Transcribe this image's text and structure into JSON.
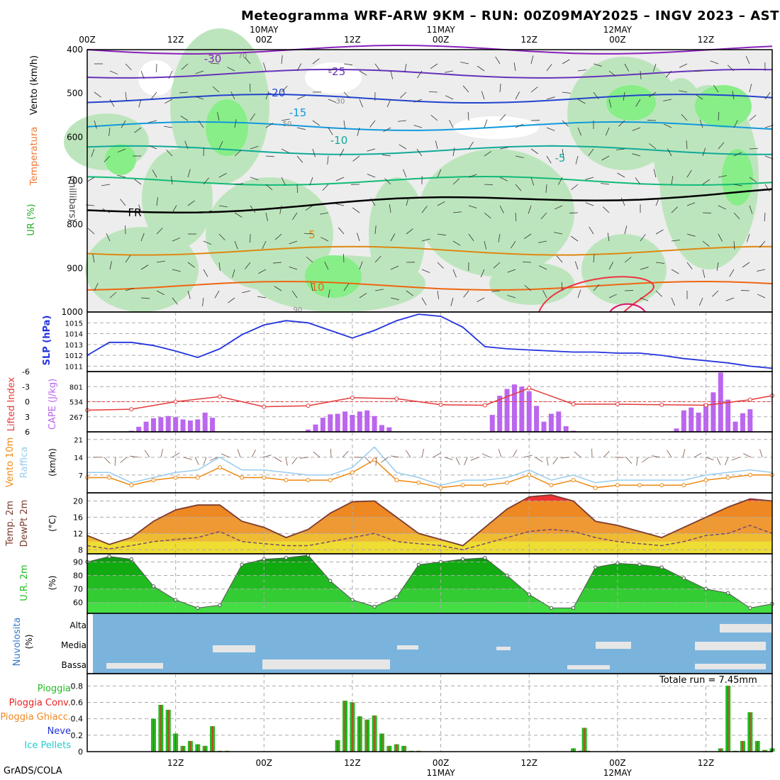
{
  "title": "Meteogramma WRF-ARW 9KM – RUN: 00Z09MAY2025 – INGV 2023 – ASTI",
  "footer": "GrADS/COLA",
  "colors": {
    "slp": "#2233dd",
    "lifted": "#e43a3a",
    "cape": "#bb66ee",
    "wind10": "#ee8811",
    "gust": "#99ccee",
    "temp": "#7a3b2e",
    "humidity": "#22bb22",
    "cloudbg": "#7ab4dd",
    "rain": "#22bb22",
    "rainconv": "#ee2222"
  },
  "time_axis": {
    "top_hours": [
      "00Z",
      "12Z",
      "00Z",
      "12Z",
      "00Z",
      "12Z",
      "00Z",
      "12Z"
    ],
    "top_dates": [
      "10MAY",
      "11MAY",
      "12MAY"
    ],
    "bottom_hours": [
      "12Z",
      "00Z",
      "12Z",
      "00Z",
      "12Z",
      "00Z",
      "12Z"
    ],
    "bottom_dates": [
      "11MAY",
      "12MAY"
    ]
  },
  "panels": {
    "upper": {
      "labels": [
        "Vento (km/h)",
        "Temperatura",
        "UR (%)",
        "(millibars)"
      ],
      "y_ticks": [
        "400",
        "500",
        "600",
        "700",
        "800",
        "900",
        "1000"
      ],
      "isotherm_labels": [
        "-30",
        "-25",
        "-20",
        "-15",
        "-10",
        "-5",
        "FR",
        "5",
        "10"
      ],
      "rh_labels": [
        "70",
        "50",
        "30",
        "90"
      ]
    },
    "slp": {
      "label": "SLP (hPa)",
      "y_ticks": [
        "1015",
        "1014",
        "1013",
        "1012",
        "1011"
      ]
    },
    "cape": {
      "label_li": "Lifted Index",
      "label_cape": "CAPE (J/kg)",
      "y_ticks_li": [
        "-6",
        "-3",
        "0",
        "3",
        "6"
      ],
      "y_ticks_cape": [
        "801",
        "534",
        "267"
      ]
    },
    "wind": {
      "label_wind": "Vento 10m",
      "label_gust": "Raffica",
      "unit": "(km/h)",
      "y_ticks": [
        "21",
        "14",
        "7"
      ]
    },
    "temp": {
      "label_temp": "Temp. 2m",
      "label_dew": "DewPt 2m",
      "unit": "(°C)",
      "y_ticks": [
        "20",
        "16",
        "12",
        "8"
      ]
    },
    "rh": {
      "label": "U.R. 2m",
      "unit": "(%)",
      "y_ticks": [
        "90",
        "80",
        "70",
        "60"
      ]
    },
    "cloud": {
      "label": "Nuvolosita",
      "unit": "(%)",
      "levels": [
        "Alta",
        "Media",
        "Bassa"
      ]
    },
    "precip": {
      "legend": [
        "Pioggia",
        "Pioggia Conv.",
        "Pioggia Ghiacc.",
        "Neve",
        "Ice Pellets"
      ],
      "y_ticks": [
        "0.8",
        "0.6",
        "0.4",
        "0.2",
        "0"
      ],
      "total_text": "Totale run = 7.45mm"
    }
  },
  "chart_data": [
    {
      "type": "line",
      "title": "SLP (hPa)",
      "ylim": [
        1010.5,
        1016
      ],
      "x": [
        0,
        3,
        6,
        9,
        12,
        15,
        18,
        21,
        24,
        27,
        30,
        33,
        36,
        39,
        42,
        45,
        48,
        51,
        54,
        57,
        60,
        63,
        66,
        69,
        72,
        75,
        78,
        81,
        84,
        87,
        90,
        93
      ],
      "series": [
        {
          "name": "SLP (hPa)",
          "values": [
            1012.0,
            1013.2,
            1013.2,
            1012.9,
            1012.4,
            1011.8,
            1012.6,
            1013.9,
            1014.8,
            1015.2,
            1015.0,
            1014.3,
            1013.6,
            1014.3,
            1015.2,
            1015.8,
            1015.6,
            1014.6,
            1012.8,
            1012.6,
            1012.5,
            1012.4,
            1012.3,
            1012.3,
            1012.2,
            1012.2,
            1012.0,
            1011.7,
            1011.5,
            1011.3,
            1011.0,
            1010.8
          ]
        }
      ]
    },
    {
      "type": "bar",
      "title": "CAPE (J/kg)",
      "ylim": [
        0,
        1068
      ],
      "x": [
        6,
        7,
        8,
        9,
        10,
        11,
        12,
        13,
        14,
        15,
        16,
        17,
        18,
        30,
        31,
        32,
        33,
        34,
        35,
        36,
        37,
        38,
        39,
        40,
        41,
        42,
        55,
        56,
        57,
        58,
        59,
        60,
        61,
        62,
        63,
        64,
        65,
        66,
        67,
        80,
        81,
        82,
        83,
        84,
        85,
        86,
        87,
        88,
        89,
        90
      ],
      "values": [
        20,
        90,
        180,
        240,
        260,
        280,
        260,
        220,
        200,
        220,
        340,
        250,
        0,
        40,
        130,
        250,
        310,
        320,
        360,
        300,
        360,
        380,
        280,
        120,
        80,
        0,
        300,
        640,
        760,
        840,
        800,
        720,
        460,
        180,
        320,
        360,
        100,
        20,
        0,
        60,
        380,
        430,
        340,
        500,
        700,
        1050,
        570,
        180,
        330,
        400
      ]
    },
    {
      "type": "line",
      "title": "Lifted Index",
      "ylim": [
        -6,
        6
      ],
      "x": [
        0,
        6,
        12,
        18,
        24,
        30,
        36,
        42,
        48,
        54,
        60,
        66,
        72,
        78,
        84,
        90,
        93
      ],
      "series": [
        {
          "name": "Lifted Index",
          "values": [
            1.7,
            1.5,
            0.0,
            -1.0,
            1.0,
            0.8,
            -0.8,
            -0.6,
            0.6,
            0.7,
            -2.7,
            0.5,
            0.5,
            0.6,
            0.7,
            -0.4,
            -1.2
          ]
        }
      ]
    },
    {
      "type": "line",
      "title": "Vento 10m / Raffica (km/h)",
      "ylim": [
        0,
        24
      ],
      "x": [
        0,
        3,
        6,
        9,
        12,
        15,
        18,
        21,
        24,
        27,
        30,
        33,
        36,
        39,
        42,
        45,
        48,
        51,
        54,
        57,
        60,
        63,
        66,
        69,
        72,
        75,
        78,
        81,
        84,
        87,
        90,
        93
      ],
      "series": [
        {
          "name": "Vento 10m",
          "values": [
            6,
            6,
            3,
            5,
            6,
            6,
            10,
            6,
            6,
            5,
            5,
            5,
            8,
            13,
            5,
            4,
            2,
            3,
            3,
            4,
            7,
            3,
            5,
            2,
            3,
            3,
            3,
            3,
            5,
            6,
            7,
            7
          ]
        },
        {
          "name": "Raffica",
          "values": [
            8,
            8,
            4,
            6,
            8,
            9,
            14,
            9,
            9,
            8,
            7,
            7,
            10,
            18,
            8,
            6,
            3,
            5,
            5,
            6,
            9,
            5,
            7,
            4,
            5,
            5,
            5,
            5,
            7,
            8,
            9,
            8
          ]
        }
      ]
    },
    {
      "type": "area",
      "title": "Temp. 2m / DewPt 2m (°C)",
      "ylim": [
        7,
        22
      ],
      "x": [
        0,
        3,
        6,
        9,
        12,
        15,
        18,
        21,
        24,
        27,
        30,
        33,
        36,
        39,
        42,
        45,
        48,
        51,
        54,
        57,
        60,
        63,
        66,
        69,
        72,
        75,
        78,
        81,
        84,
        87,
        90,
        93
      ],
      "series": [
        {
          "name": "Temp. 2m",
          "values": [
            11.5,
            9.3,
            11,
            15,
            17.8,
            19,
            19,
            15,
            13.5,
            11,
            13,
            17,
            19.8,
            20,
            16,
            12,
            10.5,
            9,
            13.5,
            18,
            21,
            21.5,
            20,
            15,
            14,
            12.5,
            11,
            13.5,
            16,
            18.5,
            20.5,
            20
          ]
        },
        {
          "name": "DewPt 2m",
          "values": [
            9,
            8.2,
            9,
            10,
            10.5,
            11,
            12.5,
            10,
            9.5,
            9,
            9,
            10,
            11,
            12,
            10,
            9.5,
            9,
            8,
            9.5,
            11,
            12.5,
            13,
            12.5,
            11,
            10,
            9.5,
            9,
            10,
            11.5,
            12,
            14,
            12
          ]
        }
      ]
    },
    {
      "type": "area",
      "title": "U.R. 2m (%)",
      "ylim": [
        52,
        96
      ],
      "x": [
        0,
        3,
        6,
        9,
        12,
        15,
        18,
        21,
        24,
        27,
        30,
        33,
        36,
        39,
        42,
        45,
        48,
        51,
        54,
        57,
        60,
        63,
        66,
        69,
        72,
        75,
        78,
        81,
        84,
        87,
        90,
        93
      ],
      "series": [
        {
          "name": "U.R. 2m",
          "values": [
            90,
            94,
            92,
            72,
            62,
            56,
            58,
            88,
            92,
            93,
            95,
            76,
            62,
            57,
            64,
            88,
            90,
            92,
            93,
            80,
            66,
            56,
            56,
            86,
            89,
            88,
            86,
            78,
            70,
            67,
            56,
            59
          ]
        }
      ]
    },
    {
      "type": "bar",
      "title": "Precipitazioni (mm)",
      "ylim": [
        0,
        1.0
      ],
      "total": 7.45,
      "x": [
        9,
        10,
        11,
        12,
        13,
        14,
        15,
        16,
        17,
        18,
        19,
        34,
        35,
        36,
        37,
        38,
        39,
        40,
        41,
        42,
        43,
        44,
        45,
        66,
        67,
        67.5,
        68,
        86,
        87,
        88,
        89,
        90,
        91,
        92,
        93
      ],
      "values": [
        0.4,
        0.57,
        0.51,
        0.22,
        0.07,
        0.13,
        0.09,
        0.07,
        0.31,
        0.01,
        0.01,
        0.14,
        0.62,
        0.6,
        0.43,
        0.39,
        0.44,
        0.22,
        0.07,
        0.09,
        0.07,
        0.01,
        0.01,
        0.04,
        0.01,
        0.29,
        0.01,
        0.04,
        0.84,
        0.01,
        0.13,
        0.48,
        0.13,
        0.02,
        0.04
      ]
    }
  ]
}
